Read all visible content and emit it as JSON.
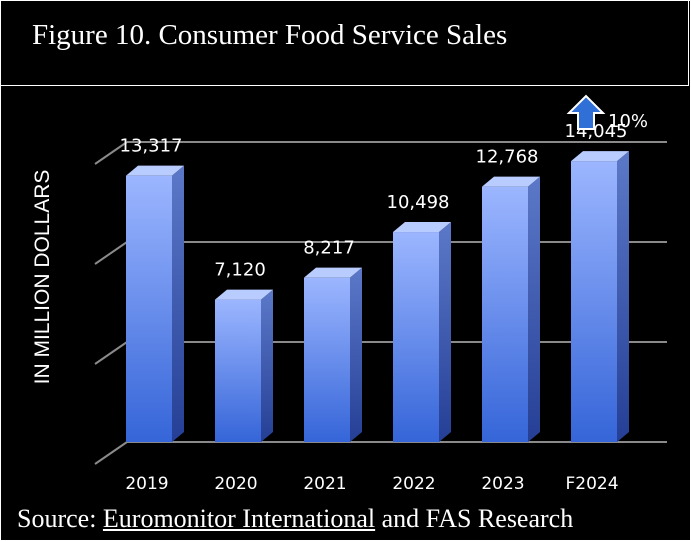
{
  "title": "Figure 10. Consumer Food Service Sales",
  "source": {
    "prefix": "Source: ",
    "link": "Euromonitor International",
    "suffix": " and FAS Research"
  },
  "annotation": {
    "text": "10%",
    "icon": "arrow-up-icon",
    "color": "#2f6fd6"
  },
  "chart_data": {
    "type": "bar",
    "categories": [
      "2019",
      "2020",
      "2021",
      "2022",
      "2023",
      "F2024"
    ],
    "values": [
      13317,
      7120,
      8217,
      10498,
      12768,
      14045
    ],
    "data_labels": [
      "13,317",
      "7,120",
      "8,217",
      "10,498",
      "12,768",
      "14,045"
    ],
    "ylabel": "IN MILLION DOLLARS",
    "ylim": [
      0,
      15000
    ],
    "grid": true,
    "bar_style": "3d",
    "bar_color": "#5b8def"
  }
}
